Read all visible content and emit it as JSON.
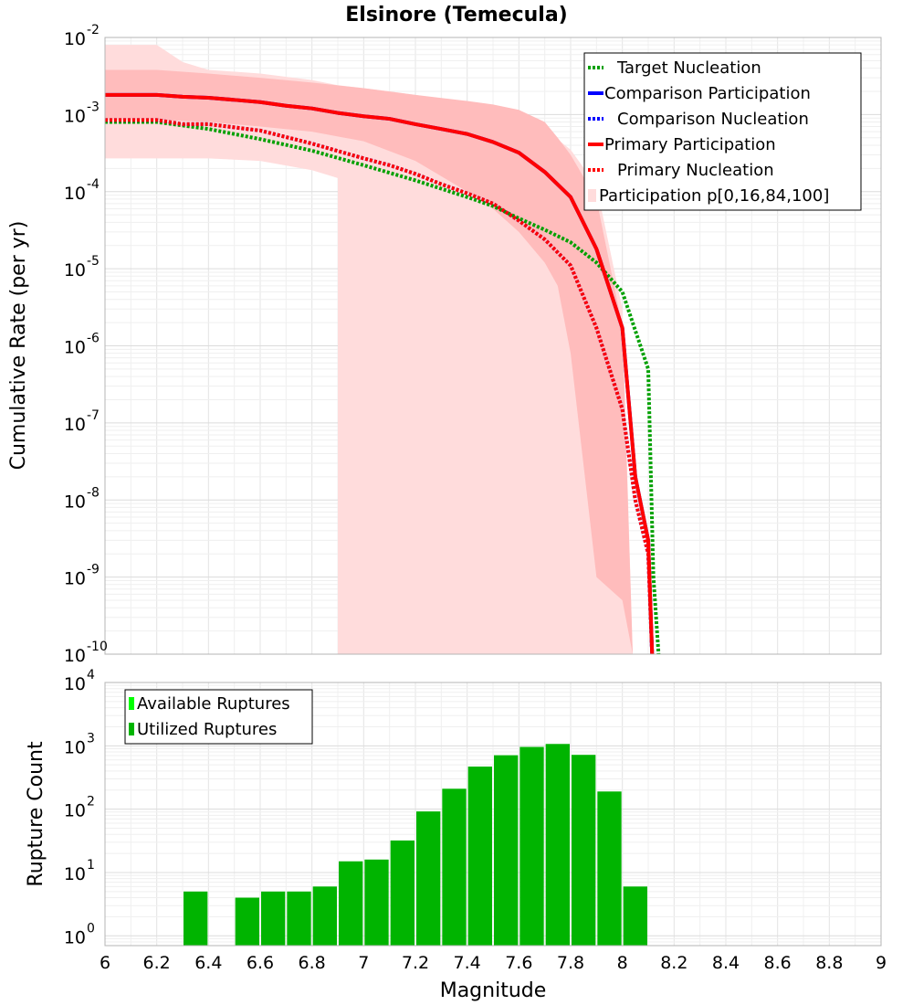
{
  "chart_data": [
    {
      "type": "line",
      "title": "Elsinore (Temecula)",
      "xlabel": "",
      "ylabel": "Cumulative Rate (per yr)",
      "xlim": [
        6,
        9
      ],
      "ylim": [
        1e-10,
        0.01
      ],
      "y_scale": "log",
      "y_tick_labels": [
        {
          "base": "10",
          "exp": "-2"
        },
        {
          "base": "10",
          "exp": "-3"
        },
        {
          "base": "10",
          "exp": "-4"
        },
        {
          "base": "10",
          "exp": "-5"
        },
        {
          "base": "10",
          "exp": "-6"
        },
        {
          "base": "10",
          "exp": "-7"
        },
        {
          "base": "10",
          "exp": "-8"
        },
        {
          "base": "10",
          "exp": "-9"
        },
        {
          "base": "10",
          "exp": "-10"
        }
      ],
      "grid": true,
      "legend_position": "top-right",
      "bands": [
        {
          "name": "Participation p[0,16,84,100]",
          "color": "#ffdcdc",
          "x": [
            6.0,
            6.2,
            6.3,
            6.4,
            6.6,
            6.8,
            6.9,
            6.9,
            7.0,
            7.1,
            7.2,
            7.3,
            7.4,
            7.5,
            7.6,
            7.7,
            7.8,
            7.9,
            8.0,
            8.04
          ],
          "upper": [
            0.008,
            0.008,
            0.0048,
            0.0038,
            0.0034,
            0.0028,
            0.0024,
            0.0024,
            0.0022,
            0.002,
            0.0018,
            0.0016,
            0.0014,
            0.0013,
            0.0011,
            0.00065,
            0.00035,
            0.00012,
            3e-06,
            1e-10
          ],
          "lower": [
            0.00027,
            0.00027,
            0.00027,
            0.00027,
            0.00025,
            0.00019,
            0.00015,
            1e-10,
            1e-10,
            1e-10,
            1e-10,
            1e-10,
            1e-10,
            1e-10,
            1e-10,
            1e-10,
            1e-10,
            1e-10,
            1e-10,
            1e-10
          ]
        },
        {
          "name": "Participation 16-84",
          "color": "#ffbcbc",
          "x": [
            6.0,
            6.2,
            6.4,
            6.6,
            6.8,
            7.0,
            7.2,
            7.4,
            7.5,
            7.6,
            7.7,
            7.75,
            7.8,
            7.9,
            8.0,
            8.04
          ],
          "upper": [
            0.0038,
            0.0038,
            0.0034,
            0.003,
            0.0026,
            0.0022,
            0.0018,
            0.0015,
            0.00135,
            0.00115,
            0.0008,
            0.0005,
            0.0003,
            8e-05,
            1.8e-06,
            1e-10
          ],
          "lower": [
            0.00085,
            0.00085,
            0.0008,
            0.0007,
            0.0006,
            0.00045,
            0.00025,
            0.0001,
            6e-05,
            3e-05,
            1.2e-05,
            6e-06,
            8e-07,
            1e-09,
            5e-10,
            1e-10
          ]
        }
      ],
      "series": [
        {
          "name": "Target Nucleation",
          "color": "#00a000",
          "dash": "dotted",
          "x": [
            6.0,
            6.2,
            6.4,
            6.6,
            6.8,
            7.0,
            7.2,
            7.4,
            7.5,
            7.6,
            7.7,
            7.8,
            7.9,
            8.0,
            8.1,
            8.12,
            8.14
          ],
          "y": [
            0.0008,
            0.0008,
            0.00065,
            0.00048,
            0.00034,
            0.00022,
            0.00014,
            8.5e-05,
            6.5e-05,
            4.5e-05,
            3.2e-05,
            2.2e-05,
            1.2e-05,
            5e-06,
            5e-07,
            1e-09,
            1e-10
          ]
        },
        {
          "name": "Comparison Participation",
          "color": "#0000ff",
          "dash": "solid",
          "x": [
            6.0,
            6.2,
            6.3,
            6.4,
            6.5,
            6.6,
            6.7,
            6.8,
            6.9,
            7.0,
            7.1,
            7.2,
            7.3,
            7.4,
            7.5,
            7.6,
            7.7,
            7.8,
            7.9,
            8.0,
            8.05,
            8.1,
            8.115
          ],
          "y": [
            0.0018,
            0.0018,
            0.0017,
            0.00165,
            0.00155,
            0.00145,
            0.0013,
            0.0012,
            0.00105,
            0.00095,
            0.00088,
            0.00075,
            0.00065,
            0.00056,
            0.00044,
            0.00032,
            0.00018,
            8.5e-05,
            1.8e-05,
            1.7e-06,
            2e-08,
            3e-09,
            1e-10
          ]
        },
        {
          "name": "Comparison Nucleation",
          "color": "#0000ff",
          "dash": "dotted",
          "x": [
            6.0,
            6.2,
            6.3,
            6.4,
            6.6,
            6.8,
            7.0,
            7.1,
            7.2,
            7.3,
            7.4,
            7.5,
            7.6,
            7.7,
            7.8,
            7.9,
            8.0,
            8.05,
            8.1,
            8.115
          ],
          "y": [
            0.00085,
            0.00085,
            0.00075,
            0.00075,
            0.00062,
            0.00042,
            0.00027,
            0.00022,
            0.00017,
            0.000125,
            9.5e-05,
            7e-05,
            4.2e-05,
            2.4e-05,
            1.1e-05,
            1.7e-06,
            1.5e-07,
            1e-08,
            2e-09,
            1e-10
          ]
        },
        {
          "name": "Primary Participation",
          "color": "#ff0000",
          "dash": "solid",
          "x": [
            6.0,
            6.2,
            6.3,
            6.4,
            6.5,
            6.6,
            6.7,
            6.8,
            6.9,
            7.0,
            7.1,
            7.2,
            7.3,
            7.4,
            7.5,
            7.6,
            7.7,
            7.8,
            7.9,
            8.0,
            8.05,
            8.1,
            8.115
          ],
          "y": [
            0.0018,
            0.0018,
            0.0017,
            0.00165,
            0.00155,
            0.00145,
            0.0013,
            0.0012,
            0.00105,
            0.00095,
            0.00088,
            0.00075,
            0.00065,
            0.00056,
            0.00044,
            0.00032,
            0.00018,
            8.5e-05,
            1.8e-05,
            1.7e-06,
            2e-08,
            3e-09,
            1e-10
          ]
        },
        {
          "name": "Primary Nucleation",
          "color": "#ff0000",
          "dash": "dotted",
          "x": [
            6.0,
            6.2,
            6.3,
            6.4,
            6.6,
            6.8,
            7.0,
            7.1,
            7.2,
            7.3,
            7.4,
            7.5,
            7.6,
            7.7,
            7.8,
            7.9,
            8.0,
            8.05,
            8.1,
            8.115
          ],
          "y": [
            0.00085,
            0.00085,
            0.00075,
            0.00075,
            0.00062,
            0.00042,
            0.00027,
            0.00022,
            0.00017,
            0.000125,
            9.5e-05,
            7e-05,
            4.2e-05,
            2.4e-05,
            1.1e-05,
            1.7e-06,
            1.5e-07,
            1e-08,
            2e-09,
            1e-10
          ]
        }
      ],
      "legend": [
        {
          "label": "Target Nucleation",
          "color": "#00a000",
          "style": "dotted"
        },
        {
          "label": "Comparison Participation",
          "color": "#0000ff",
          "style": "solid"
        },
        {
          "label": "Comparison Nucleation",
          "color": "#0000ff",
          "style": "dotted"
        },
        {
          "label": "Primary Participation",
          "color": "#ff0000",
          "style": "solid"
        },
        {
          "label": "Primary Nucleation",
          "color": "#ff0000",
          "style": "dotted"
        },
        {
          "label": "Participation p[0,16,84,100]",
          "color": "#ffdcdc",
          "style": "box"
        }
      ]
    },
    {
      "type": "bar",
      "title": "",
      "xlabel": "Magnitude",
      "ylabel": "Rupture Count",
      "xlim": [
        6,
        9
      ],
      "ylim": [
        0.7,
        10000
      ],
      "y_scale": "log",
      "bin_width": 0.1,
      "grid": true,
      "legend_position": "top-left",
      "x_ticks": [
        "6",
        "6.2",
        "6.4",
        "6.6",
        "6.8",
        "7",
        "7.2",
        "7.4",
        "7.6",
        "7.8",
        "8",
        "8.2",
        "8.4",
        "8.6",
        "8.8",
        "9"
      ],
      "y_tick_labels": [
        {
          "base": "10",
          "exp": "4"
        },
        {
          "base": "10",
          "exp": "3"
        },
        {
          "base": "10",
          "exp": "2"
        },
        {
          "base": "10",
          "exp": "1"
        },
        {
          "base": "10",
          "exp": "0"
        }
      ],
      "series": [
        {
          "name": "Available Ruptures",
          "color": "#00ff00"
        },
        {
          "name": "Utilized Ruptures",
          "color": "#00b400",
          "x": [
            6.35,
            6.55,
            6.65,
            6.75,
            6.85,
            6.95,
            7.05,
            7.15,
            7.25,
            7.35,
            7.45,
            7.55,
            7.65,
            7.75,
            7.85,
            7.95,
            8.05
          ],
          "values": [
            5,
            4,
            5,
            5,
            6,
            15,
            16,
            32,
            92,
            210,
            470,
            710,
            960,
            1070,
            720,
            190,
            6
          ]
        }
      ],
      "legend": [
        {
          "label": "Available Ruptures",
          "color": "#00ff00"
        },
        {
          "label": "Utilized Ruptures",
          "color": "#00b400"
        }
      ]
    }
  ]
}
